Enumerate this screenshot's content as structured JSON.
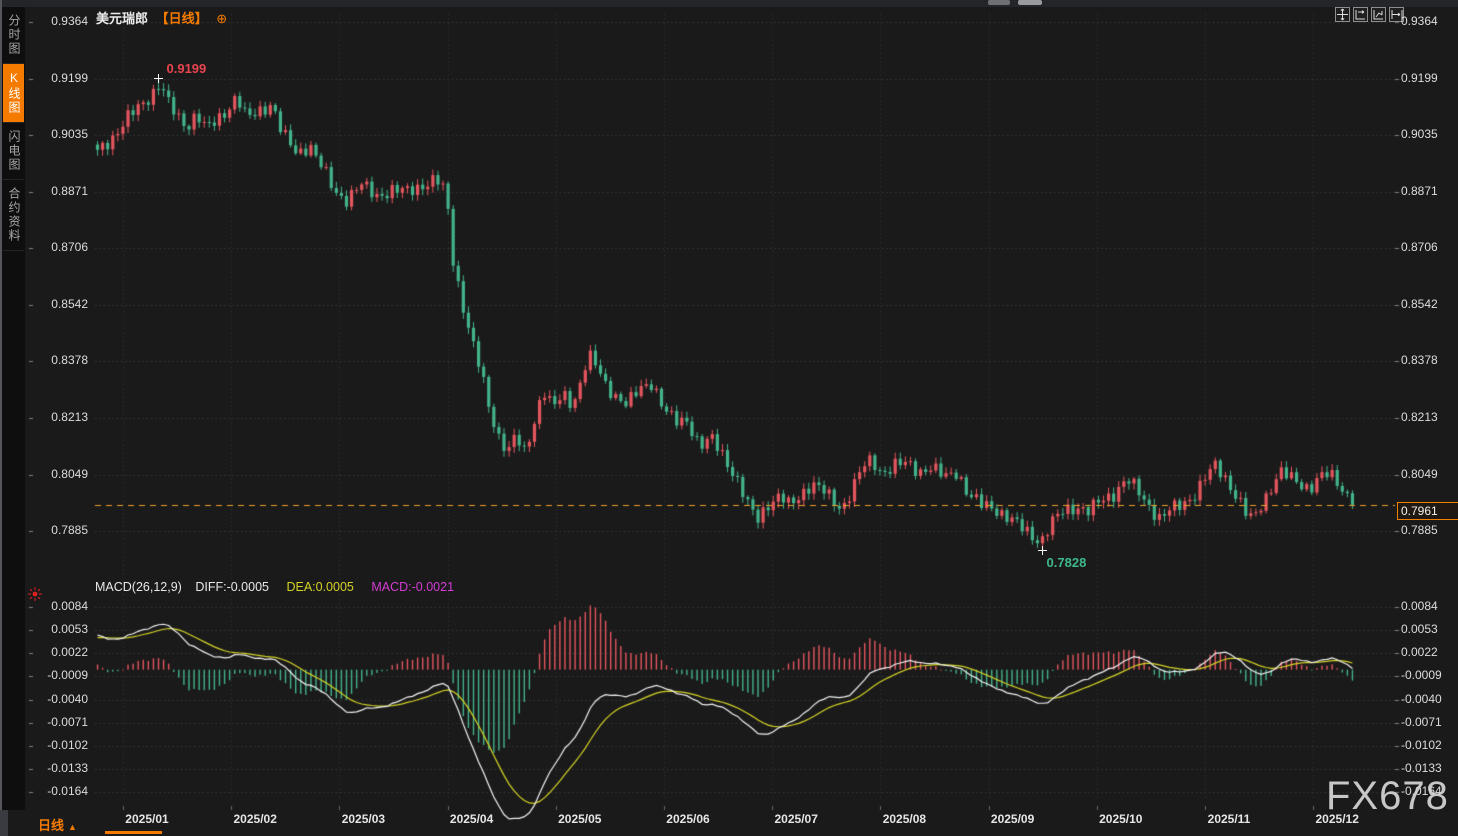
{
  "header": {
    "symbol": "美元瑞郎",
    "period_tag": "【日线】",
    "expand_icon": "⊕"
  },
  "sidebar": {
    "tabs": [
      {
        "id": "minute-chart",
        "label": "分时图",
        "active": false
      },
      {
        "id": "kline-chart",
        "label": "K线图",
        "active": true
      },
      {
        "id": "flash-chart",
        "label": "闪电图",
        "active": false
      },
      {
        "id": "contract-info",
        "label": "合约资料",
        "active": false
      }
    ]
  },
  "toolbar": {
    "icons": [
      {
        "name": "crosshair-pan-icon"
      },
      {
        "name": "auto-fit-x-icon"
      },
      {
        "name": "auto-fit-y-icon"
      },
      {
        "name": "scroll-to-latest-icon"
      }
    ]
  },
  "macd_legend": {
    "name": "MACD(26,12,9)",
    "diff_label": "DIFF:-0.0005",
    "dea_label": "DEA:0.0005",
    "macd_label": "MACD:-0.0021"
  },
  "period_selector": {
    "label": "日线",
    "arrow": "▲"
  },
  "watermark": {
    "text": "FX678"
  },
  "colors": {
    "background": "#1a1a1a",
    "up": "#e4565e",
    "down": "#43b38a",
    "accent_orange": "#f57a00",
    "price_line": "#f0a028",
    "diff_line": "#f2f2f2",
    "dea_line": "#d4d326",
    "macd_value_label": "#d43cd4",
    "grid": "#383838",
    "axis_text": "#dcdcdc"
  },
  "chart_data": {
    "type": "candlestick",
    "symbol": "美元瑞郎 (USD/CHF)",
    "interval": "日线",
    "x_labels": [
      "2025/01",
      "2025/02",
      "2025/03",
      "2025/04",
      "2025/05",
      "2025/06",
      "2025/07",
      "2025/08",
      "2025/09",
      "2025/10",
      "2025/11",
      "2025/12"
    ],
    "y_ticks_price": [
      0.9364,
      0.9199,
      0.9035,
      0.8871,
      0.8706,
      0.8542,
      0.8378,
      0.8213,
      0.8049,
      0.7885
    ],
    "high_annotation": 0.9199,
    "low_annotation": 0.7828,
    "last_price": 0.7961,
    "high_anchor_index": 12,
    "low_anchor_index": 186,
    "n_candles": 248,
    "close_anchors": [
      [
        0.0,
        0.8985
      ],
      [
        0.012,
        0.903
      ],
      [
        0.024,
        0.9085
      ],
      [
        0.036,
        0.9125
      ],
      [
        0.044,
        0.916
      ],
      [
        0.05,
        0.919
      ],
      [
        0.056,
        0.913
      ],
      [
        0.063,
        0.909
      ],
      [
        0.071,
        0.906
      ],
      [
        0.079,
        0.91
      ],
      [
        0.087,
        0.905
      ],
      [
        0.099,
        0.909
      ],
      [
        0.111,
        0.915
      ],
      [
        0.119,
        0.908
      ],
      [
        0.131,
        0.911
      ],
      [
        0.139,
        0.913
      ],
      [
        0.147,
        0.904
      ],
      [
        0.159,
        0.898
      ],
      [
        0.169,
        0.901
      ],
      [
        0.179,
        0.894
      ],
      [
        0.189,
        0.887
      ],
      [
        0.198,
        0.885
      ],
      [
        0.21,
        0.889
      ],
      [
        0.222,
        0.886
      ],
      [
        0.234,
        0.8875
      ],
      [
        0.246,
        0.887
      ],
      [
        0.258,
        0.889
      ],
      [
        0.27,
        0.8905
      ],
      [
        0.278,
        0.8865
      ],
      [
        0.283,
        0.868
      ],
      [
        0.29,
        0.856
      ],
      [
        0.298,
        0.844
      ],
      [
        0.306,
        0.834
      ],
      [
        0.313,
        0.823
      ],
      [
        0.321,
        0.815
      ],
      [
        0.328,
        0.812
      ],
      [
        0.333,
        0.816
      ],
      [
        0.34,
        0.811
      ],
      [
        0.347,
        0.819
      ],
      [
        0.355,
        0.83
      ],
      [
        0.363,
        0.824
      ],
      [
        0.371,
        0.828
      ],
      [
        0.379,
        0.8255
      ],
      [
        0.385,
        0.832
      ],
      [
        0.391,
        0.8395
      ],
      [
        0.398,
        0.836
      ],
      [
        0.405,
        0.831
      ],
      [
        0.413,
        0.828
      ],
      [
        0.422,
        0.825
      ],
      [
        0.433,
        0.83
      ],
      [
        0.442,
        0.832
      ],
      [
        0.451,
        0.824
      ],
      [
        0.46,
        0.82
      ],
      [
        0.47,
        0.821
      ],
      [
        0.48,
        0.813
      ],
      [
        0.49,
        0.815
      ],
      [
        0.5,
        0.81
      ],
      [
        0.51,
        0.803
      ],
      [
        0.518,
        0.796
      ],
      [
        0.526,
        0.792
      ],
      [
        0.534,
        0.7965
      ],
      [
        0.544,
        0.7985
      ],
      [
        0.552,
        0.7955
      ],
      [
        0.561,
        0.7995
      ],
      [
        0.569,
        0.8025
      ],
      [
        0.577,
        0.8005
      ],
      [
        0.585,
        0.7975
      ],
      [
        0.593,
        0.795
      ],
      [
        0.601,
        0.8005
      ],
      [
        0.609,
        0.8065
      ],
      [
        0.617,
        0.809
      ],
      [
        0.625,
        0.8055
      ],
      [
        0.635,
        0.8075
      ],
      [
        0.645,
        0.808
      ],
      [
        0.655,
        0.806
      ],
      [
        0.664,
        0.807
      ],
      [
        0.675,
        0.804
      ],
      [
        0.685,
        0.806
      ],
      [
        0.694,
        0.799
      ],
      [
        0.704,
        0.796
      ],
      [
        0.714,
        0.7955
      ],
      [
        0.725,
        0.7925
      ],
      [
        0.734,
        0.79
      ],
      [
        0.744,
        0.7875
      ],
      [
        0.752,
        0.7855
      ],
      [
        0.76,
        0.7905
      ],
      [
        0.77,
        0.7945
      ],
      [
        0.78,
        0.7958
      ],
      [
        0.79,
        0.794
      ],
      [
        0.799,
        0.7972
      ],
      [
        0.81,
        0.7995
      ],
      [
        0.82,
        0.8035
      ],
      [
        0.829,
        0.8
      ],
      [
        0.839,
        0.7955
      ],
      [
        0.847,
        0.792
      ],
      [
        0.855,
        0.7945
      ],
      [
        0.865,
        0.7965
      ],
      [
        0.875,
        0.7995
      ],
      [
        0.883,
        0.804
      ],
      [
        0.891,
        0.8075
      ],
      [
        0.899,
        0.804
      ],
      [
        0.907,
        0.799
      ],
      [
        0.915,
        0.7935
      ],
      [
        0.921,
        0.7915
      ],
      [
        0.926,
        0.7955
      ],
      [
        0.934,
        0.8005
      ],
      [
        0.942,
        0.8055
      ],
      [
        0.95,
        0.804
      ],
      [
        0.958,
        0.8025
      ],
      [
        0.966,
        0.801
      ],
      [
        0.974,
        0.804
      ],
      [
        0.982,
        0.805
      ],
      [
        0.99,
        0.802
      ],
      [
        0.996,
        0.799
      ],
      [
        1.0,
        0.7961
      ]
    ],
    "macd": {
      "type": "macd",
      "params": [
        26,
        12,
        9
      ],
      "diff": -0.0005,
      "dea": 0.0005,
      "macd": -0.0021,
      "y_ticks": [
        0.0084,
        0.0053,
        0.0022,
        -0.0009,
        -0.004,
        -0.0071,
        -0.0102,
        -0.0133,
        -0.0164
      ]
    }
  }
}
